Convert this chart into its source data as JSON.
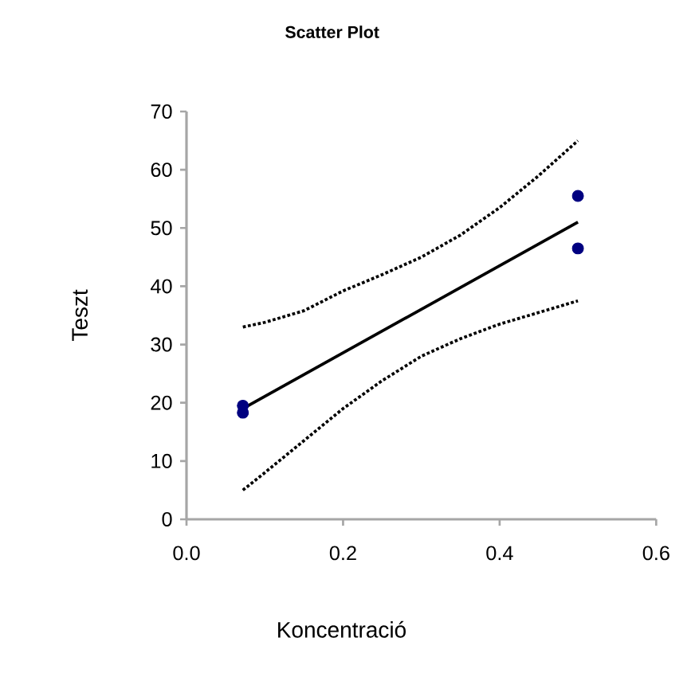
{
  "chart_data": {
    "type": "scatter",
    "title": "Scatter Plot",
    "xlabel": "Koncentració",
    "ylabel": "Teszt",
    "xlim": [
      0,
      0.6
    ],
    "ylim": [
      0,
      70
    ],
    "xticks": [
      {
        "value": 0,
        "label": "0.0"
      },
      0.2,
      0.4,
      0.6
    ],
    "yticks": [
      0,
      10,
      20,
      30,
      40,
      50,
      60,
      70
    ],
    "marker": "circle",
    "series": [
      {
        "type": "scatter",
        "color": "#000080",
        "x": [
          0.072,
          0.072,
          0.5,
          0.5
        ],
        "values": [
          19.5,
          18.3,
          55.5,
          46.5
        ]
      },
      {
        "type": "line",
        "color": "#000000",
        "line_style": "solid",
        "marker": "none",
        "x": [
          0.072,
          0.5
        ],
        "values": [
          19,
          51
        ]
      },
      {
        "type": "line",
        "color": "#000000",
        "line_style": "dotted",
        "marker": "none",
        "x": [
          0.072,
          0.1,
          0.15,
          0.2,
          0.25,
          0.3,
          0.35,
          0.4,
          0.45,
          0.5
        ],
        "values": [
          33,
          33.8,
          35.8,
          39.2,
          42,
          45,
          48.8,
          53.5,
          59,
          65
        ]
      },
      {
        "type": "line",
        "color": "#000000",
        "line_style": "dotted",
        "marker": "none",
        "x": [
          0.072,
          0.1,
          0.15,
          0.2,
          0.25,
          0.3,
          0.35,
          0.4,
          0.45,
          0.5
        ],
        "values": [
          5,
          8,
          13.5,
          19,
          23.8,
          28,
          31,
          33.5,
          35.5,
          37.5
        ]
      }
    ]
  }
}
